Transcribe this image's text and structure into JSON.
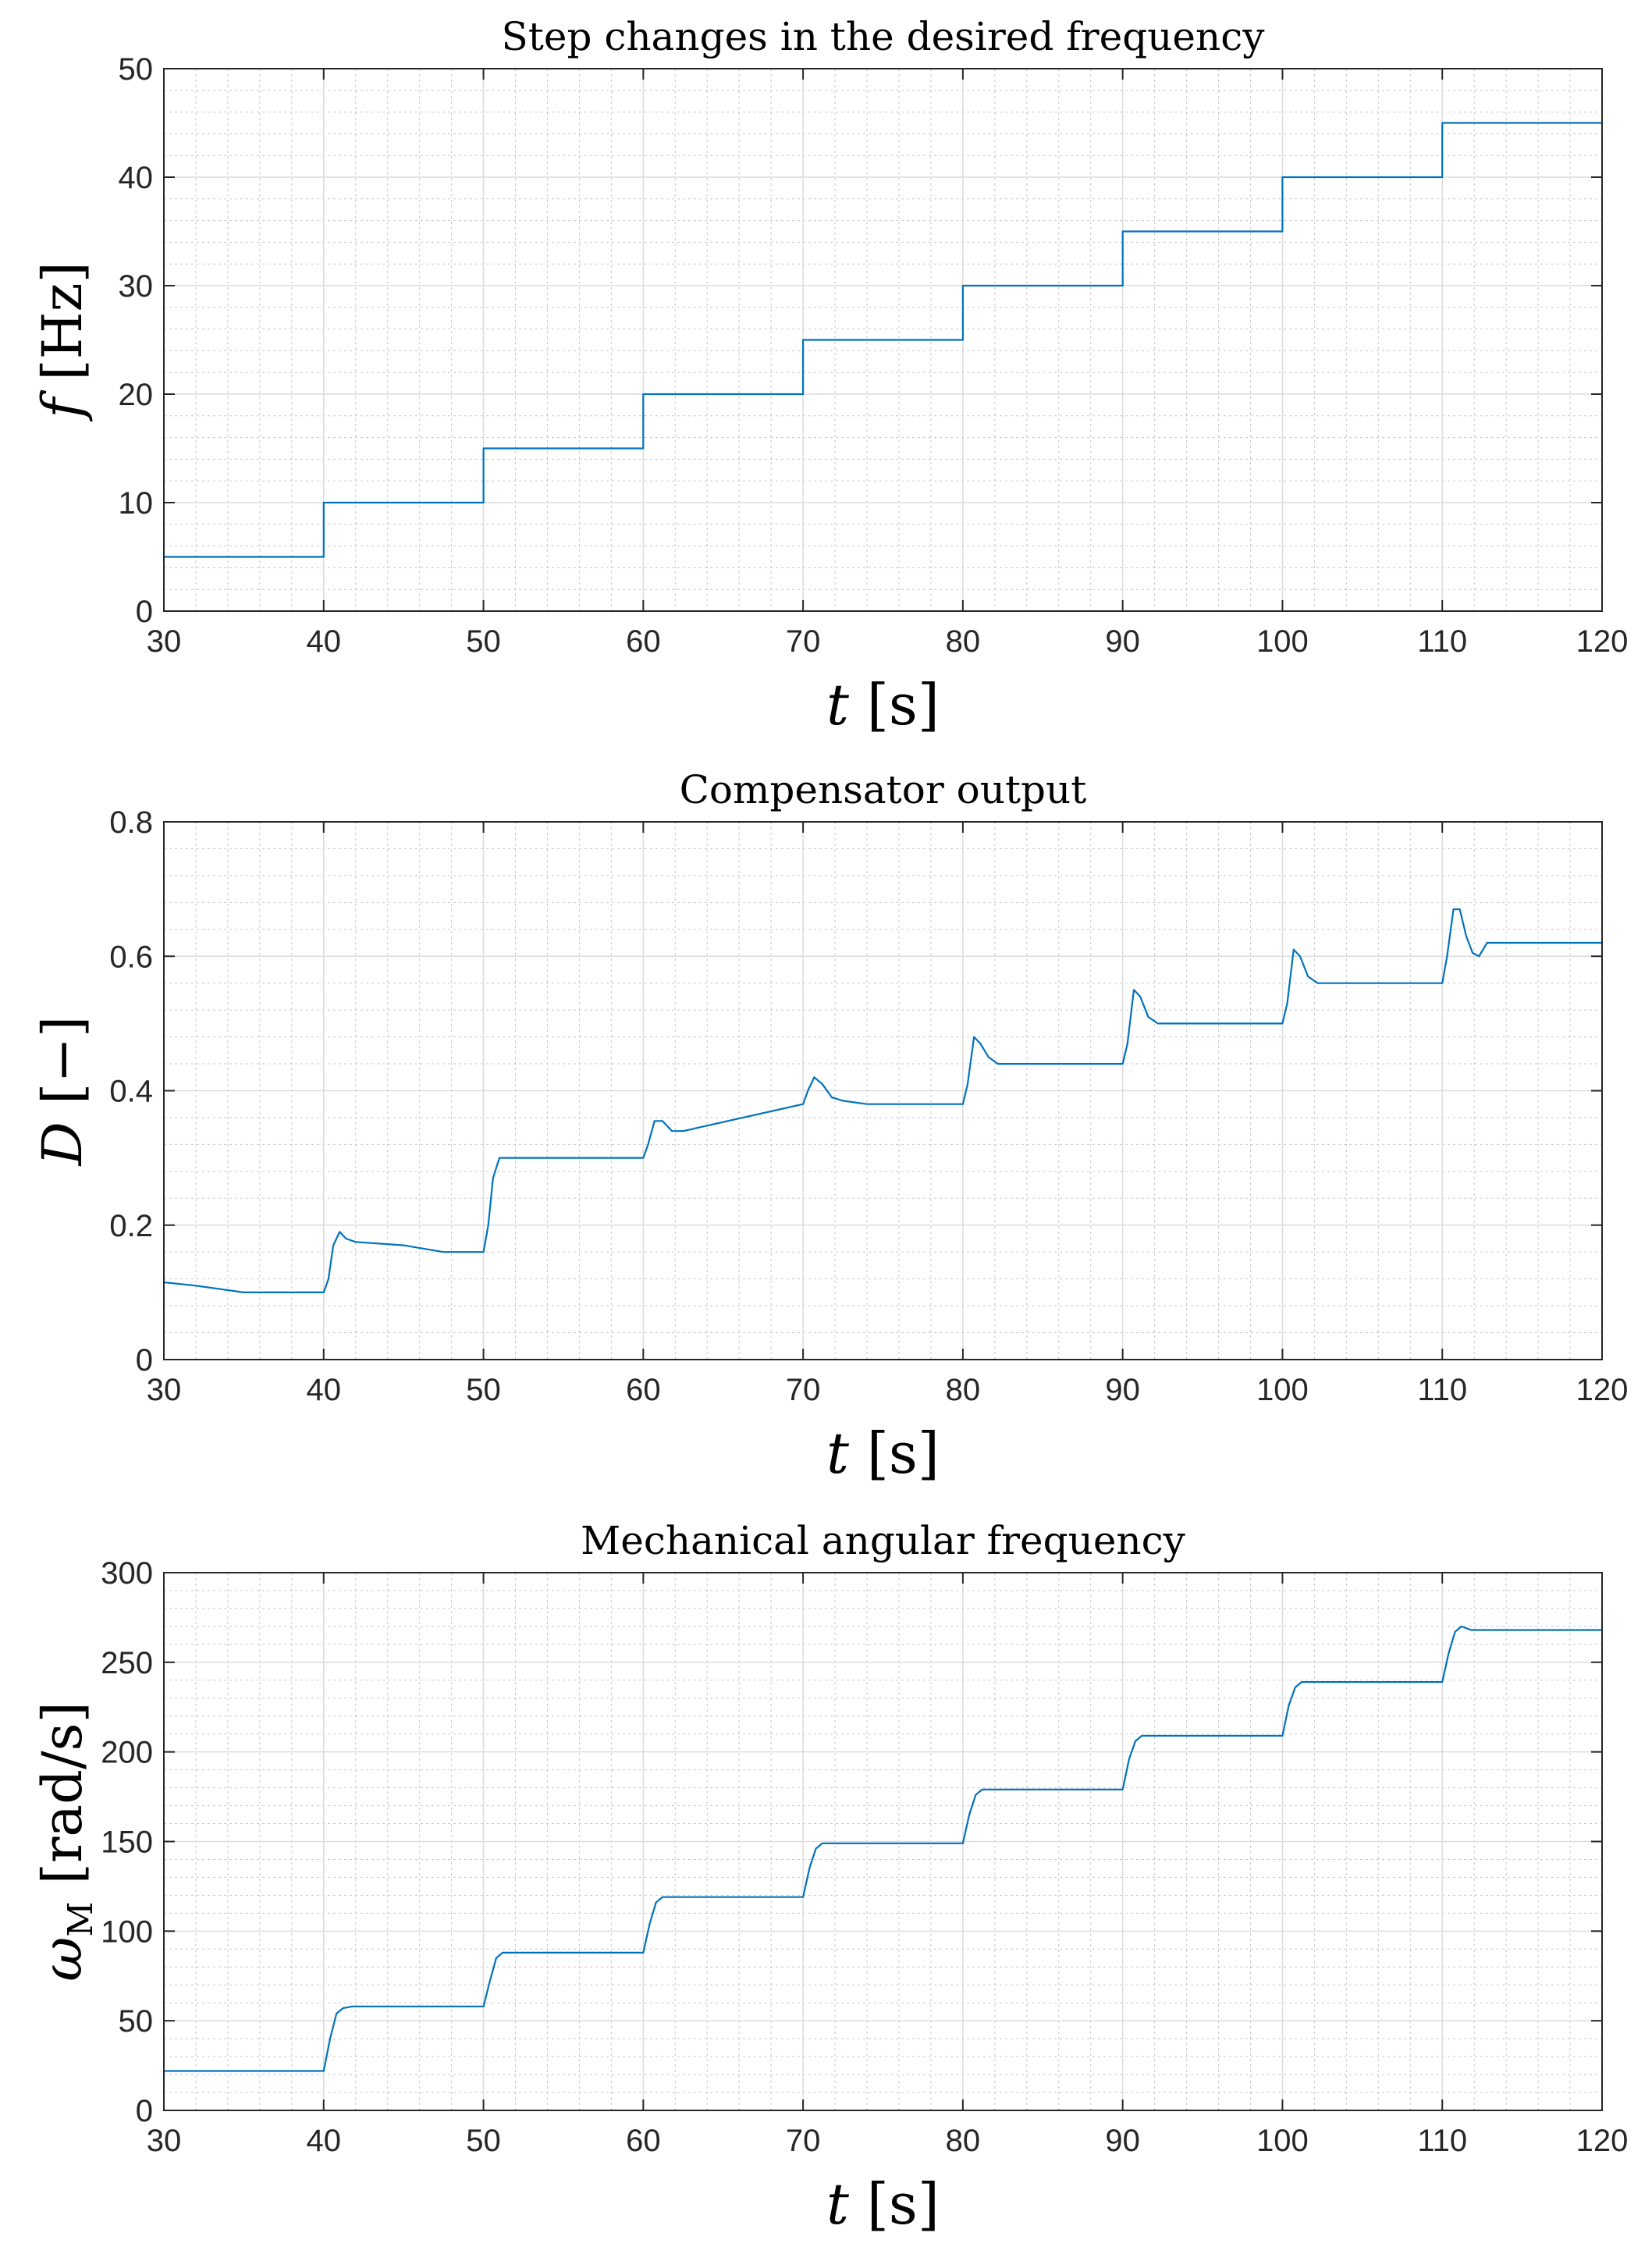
{
  "chart_data": [
    {
      "type": "line",
      "title": "Step changes in the desired frequency",
      "xlabel": "t [s]",
      "ylabel": "f [Hz]",
      "xlabel_var": "t",
      "xlabel_unit": "[s]",
      "ylabel_var": "f",
      "ylabel_unit": "[Hz]",
      "xlim": [
        30,
        120
      ],
      "ylim": [
        0,
        50
      ],
      "xticks": [
        30,
        40,
        50,
        60,
        70,
        80,
        90,
        100,
        110,
        120
      ],
      "yticks": [
        0,
        10,
        20,
        30,
        40,
        50
      ],
      "grid": true,
      "series": [
        {
          "name": "f",
          "color": "#0072bd",
          "x": [
            30,
            40,
            40,
            50,
            50,
            60,
            60,
            70,
            70,
            80,
            80,
            90,
            90,
            100,
            100,
            110,
            110,
            120
          ],
          "y": [
            5,
            5,
            10,
            10,
            15,
            15,
            20,
            20,
            25,
            25,
            30,
            30,
            35,
            35,
            40,
            40,
            45,
            45
          ]
        }
      ]
    },
    {
      "type": "line",
      "title": "Compensator output",
      "xlabel": "t [s]",
      "ylabel": "D [−]",
      "xlabel_var": "t",
      "xlabel_unit": "[s]",
      "ylabel_var": "D",
      "ylabel_unit": "[−]",
      "xlim": [
        30,
        120
      ],
      "ylim": [
        0,
        0.8
      ],
      "xticks": [
        30,
        40,
        50,
        60,
        70,
        80,
        90,
        100,
        110,
        120
      ],
      "yticks": [
        0,
        0.2,
        0.4,
        0.6,
        0.8
      ],
      "grid": true,
      "series": [
        {
          "name": "D",
          "color": "#0072bd",
          "x": [
            30,
            32,
            35,
            40,
            40.3,
            40.6,
            41,
            41.4,
            42,
            45,
            47.5,
            50,
            50.3,
            50.6,
            51,
            51.5,
            60,
            60.3,
            60.7,
            61.2,
            61.8,
            62.5,
            70,
            70.3,
            70.7,
            71.2,
            71.8,
            72.5,
            74,
            80,
            80.3,
            80.7,
            81.1,
            81.6,
            82.2,
            90,
            90.3,
            90.7,
            91.1,
            91.6,
            92.2,
            100,
            100.3,
            100.7,
            101.1,
            101.6,
            102.2,
            110,
            110.3,
            110.7,
            111.1,
            111.5,
            111.9,
            112.3,
            112.8,
            114,
            116,
            118,
            120
          ],
          "y": [
            0.115,
            0.11,
            0.1,
            0.1,
            0.12,
            0.17,
            0.19,
            0.18,
            0.175,
            0.17,
            0.16,
            0.16,
            0.2,
            0.27,
            0.3,
            0.3,
            0.3,
            0.32,
            0.355,
            0.355,
            0.34,
            0.34,
            0.38,
            0.4,
            0.42,
            0.41,
            0.39,
            0.385,
            0.38,
            0.38,
            0.41,
            0.48,
            0.47,
            0.45,
            0.44,
            0.44,
            0.47,
            0.55,
            0.54,
            0.51,
            0.5,
            0.5,
            0.53,
            0.61,
            0.6,
            0.57,
            0.56,
            0.56,
            0.6,
            0.67,
            0.67,
            0.63,
            0.605,
            0.6,
            0.62,
            0.62,
            0.62,
            0.62,
            0.62
          ]
        }
      ]
    },
    {
      "type": "line",
      "title": "Mechanical angular frequency",
      "xlabel": "t [s]",
      "ylabel": "ωM [rad/s]",
      "xlabel_var": "t",
      "xlabel_unit": "[s]",
      "ylabel_var": "ω",
      "ylabel_sub": "M",
      "ylabel_unit": "[rad/s]",
      "xlim": [
        30,
        120
      ],
      "ylim": [
        0,
        300
      ],
      "xticks": [
        30,
        40,
        50,
        60,
        70,
        80,
        90,
        100,
        110,
        120
      ],
      "yticks": [
        0,
        50,
        100,
        150,
        200,
        250,
        300
      ],
      "grid": true,
      "series": [
        {
          "name": "omega_M",
          "color": "#0072bd",
          "x": [
            30,
            40,
            40.4,
            40.8,
            41.2,
            41.8,
            50,
            50.4,
            50.8,
            51.2,
            51.8,
            60,
            60.4,
            60.8,
            61.2,
            61.8,
            70,
            70.4,
            70.8,
            71.2,
            71.8,
            80,
            80.4,
            80.8,
            81.2,
            81.8,
            90,
            90.4,
            90.8,
            91.2,
            91.8,
            100,
            100.4,
            100.8,
            101.2,
            101.8,
            110,
            110.4,
            110.8,
            111.2,
            111.8,
            120
          ],
          "y": [
            22,
            22,
            40,
            54,
            57,
            58,
            58,
            72,
            85,
            88,
            88,
            88,
            104,
            116,
            119,
            119,
            119,
            135,
            146,
            149,
            149,
            149,
            165,
            176,
            179,
            179,
            179,
            196,
            206,
            209,
            209,
            209,
            226,
            236,
            239,
            239,
            239,
            255,
            267,
            270,
            268,
            268
          ]
        }
      ]
    }
  ]
}
